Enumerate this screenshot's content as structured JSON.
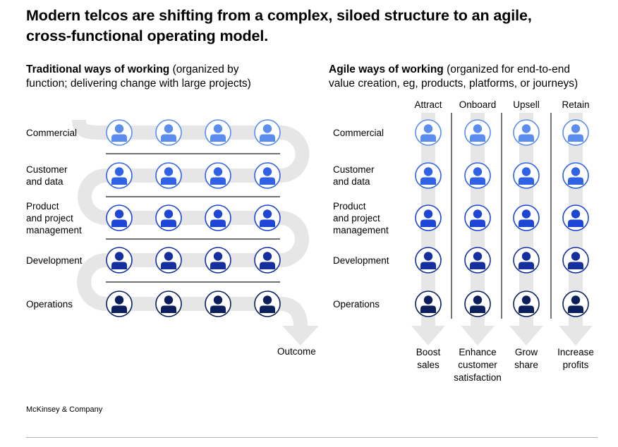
{
  "title": {
    "line1": "Modern telcos are shifting from a complex, siloed structure to an agile,",
    "line2": "cross-functional operating model."
  },
  "traditional": {
    "heading_bold": "Traditional ways of working",
    "heading_rest": " (organized by",
    "heading_line2": "function; delivering change with large projects)",
    "rows": [
      {
        "lines": [
          "Commercial"
        ],
        "color": "#5a8dee",
        "ring": "#5a8dee"
      },
      {
        "lines": [
          "Customer",
          "and data"
        ],
        "color": "#2f62e4",
        "ring": "#2f62e4"
      },
      {
        "lines": [
          "Product",
          "and project",
          "management"
        ],
        "color": "#1e46d6",
        "ring": "#1e46d6"
      },
      {
        "lines": [
          "Development"
        ],
        "color": "#15309e",
        "ring": "#15309e"
      },
      {
        "lines": [
          "Operations"
        ],
        "color": "#0a1f5c",
        "ring": "#0a1f5c"
      }
    ],
    "outcome": "Outcome"
  },
  "agile": {
    "heading_bold": "Agile ways of working",
    "heading_rest": " (organized for end-to-end",
    "heading_line2": "value creation, eg, products, platforms, or journeys)",
    "columns": [
      {
        "name": "Attract",
        "outcome": [
          "Boost",
          "sales"
        ]
      },
      {
        "name": "Onboard",
        "outcome": [
          "Enhance",
          "customer",
          "satisfaction"
        ]
      },
      {
        "name": "Upsell",
        "outcome": [
          "Grow",
          "share"
        ]
      },
      {
        "name": "Retain",
        "outcome": [
          "Increase",
          "profits"
        ]
      }
    ],
    "rows": [
      {
        "lines": [
          "Commercial"
        ]
      },
      {
        "lines": [
          "Customer",
          "and data"
        ]
      },
      {
        "lines": [
          "Product",
          "and project",
          "management"
        ]
      },
      {
        "lines": [
          "Development"
        ]
      },
      {
        "lines": [
          "Operations"
        ]
      }
    ]
  },
  "footer": "McKinsey & Company",
  "colors": {
    "flow": "#e6e6e6",
    "divider": "#1a1a1a"
  }
}
